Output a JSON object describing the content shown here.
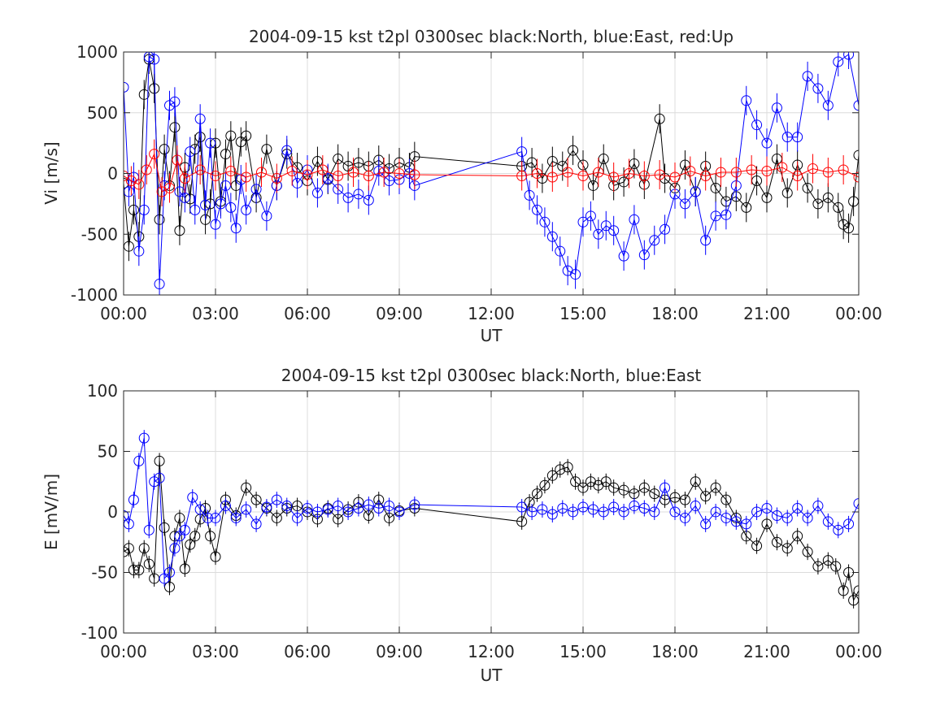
{
  "chart_data": [
    {
      "type": "scatter",
      "title": "2004-09-15 kst t2pl 0300sec black:North, blue:East, red:Up",
      "xlabel": "UT",
      "ylabel": "Vi [m/s]",
      "xlim": [
        0,
        24
      ],
      "ylim": [
        -1000,
        1000
      ],
      "x_ticks": [
        "00:00",
        "03:00",
        "06:00",
        "09:00",
        "12:00",
        "15:00",
        "18:00",
        "21:00",
        "00:00"
      ],
      "y_ticks": [
        "-1000",
        "-500",
        "0",
        "500",
        "1000"
      ],
      "y_tick_values": [
        -1000,
        -500,
        0,
        500,
        1000
      ],
      "grid": true,
      "marker": "open-circle",
      "error_bars": true,
      "series": [
        {
          "name": "North",
          "color": "#000000",
          "x": [
            0.0,
            0.17,
            0.33,
            0.5,
            0.67,
            0.83,
            1.0,
            1.17,
            1.33,
            1.5,
            1.67,
            1.83,
            2.0,
            2.17,
            2.33,
            2.5,
            2.67,
            2.83,
            3.0,
            3.17,
            3.33,
            3.5,
            3.67,
            3.83,
            4.0,
            4.33,
            4.67,
            5.0,
            5.33,
            5.67,
            6.0,
            6.33,
            6.67,
            7.0,
            7.33,
            7.67,
            8.0,
            8.33,
            8.67,
            9.0,
            9.33,
            9.5,
            13.0,
            13.33,
            13.67,
            14.0,
            14.33,
            14.67,
            15.0,
            15.33,
            15.67,
            16.0,
            16.33,
            16.67,
            17.0,
            17.5,
            17.67,
            18.0,
            18.33,
            18.67,
            19.0,
            19.33,
            19.67,
            20.0,
            20.33,
            20.67,
            21.0,
            21.33,
            21.67,
            22.0,
            22.33,
            22.67,
            23.0,
            23.33,
            23.5,
            23.67,
            23.83,
            24.0
          ],
          "values": [
            -80,
            -600,
            -300,
            -520,
            650,
            940,
            700,
            -380,
            200,
            -100,
            380,
            -470,
            50,
            -210,
            200,
            300,
            -380,
            -250,
            250,
            -230,
            160,
            310,
            -100,
            260,
            310,
            -200,
            200,
            -100,
            160,
            50,
            -60,
            100,
            -50,
            120,
            60,
            90,
            60,
            110,
            40,
            90,
            50,
            140,
            60,
            90,
            -40,
            100,
            60,
            190,
            70,
            -100,
            120,
            -100,
            -70,
            80,
            -90,
            450,
            -40,
            -120,
            70,
            -150,
            60,
            -120,
            -230,
            -190,
            -280,
            -60,
            -200,
            120,
            -160,
            70,
            -120,
            -250,
            -200,
            -280,
            -420,
            -450,
            -230,
            150
          ]
        },
        {
          "name": "East",
          "color": "#0000ff",
          "x": [
            0.0,
            0.17,
            0.33,
            0.5,
            0.67,
            0.83,
            1.0,
            1.17,
            1.33,
            1.5,
            1.67,
            1.83,
            2.0,
            2.17,
            2.33,
            2.5,
            2.67,
            2.83,
            3.0,
            3.17,
            3.33,
            3.5,
            3.67,
            3.83,
            4.0,
            4.33,
            4.67,
            5.0,
            5.33,
            5.67,
            6.0,
            6.33,
            6.67,
            7.0,
            7.33,
            7.67,
            8.0,
            8.33,
            8.67,
            9.0,
            9.33,
            9.5,
            13.0,
            13.25,
            13.5,
            13.75,
            14.0,
            14.25,
            14.5,
            14.75,
            15.0,
            15.25,
            15.5,
            15.75,
            16.0,
            16.33,
            16.67,
            17.0,
            17.33,
            17.67,
            18.0,
            18.33,
            18.67,
            19.0,
            19.33,
            19.67,
            20.0,
            20.33,
            20.67,
            21.0,
            21.33,
            21.67,
            22.0,
            22.33,
            22.67,
            23.0,
            23.33,
            23.67,
            24.0
          ],
          "values": [
            710,
            -150,
            -30,
            -640,
            -300,
            960,
            940,
            -910,
            -100,
            560,
            590,
            -150,
            -200,
            180,
            -300,
            450,
            -260,
            250,
            -420,
            -250,
            -100,
            -280,
            -450,
            -50,
            -300,
            -130,
            -350,
            -100,
            190,
            -80,
            30,
            -160,
            -40,
            -130,
            -200,
            -170,
            -220,
            20,
            -60,
            -50,
            0,
            -100,
            180,
            -180,
            -300,
            -400,
            -520,
            -640,
            -800,
            -830,
            -400,
            -350,
            -500,
            -430,
            -470,
            -680,
            -380,
            -670,
            -550,
            -460,
            -170,
            -250,
            -150,
            -550,
            -350,
            -340,
            -100,
            600,
            400,
            250,
            540,
            300,
            300,
            800,
            700,
            560,
            920,
            980,
            560
          ]
        },
        {
          "name": "Up",
          "color": "#ff0000",
          "x": [
            0.0,
            0.25,
            0.5,
            0.75,
            1.0,
            1.25,
            1.5,
            1.75,
            2.0,
            2.5,
            3.0,
            3.5,
            4.0,
            4.5,
            5.0,
            5.5,
            6.0,
            6.5,
            7.0,
            7.5,
            8.0,
            8.5,
            9.0,
            9.5,
            13.0,
            13.5,
            14.0,
            14.5,
            15.0,
            15.5,
            16.0,
            16.5,
            17.0,
            17.5,
            18.0,
            18.5,
            19.0,
            19.5,
            20.0,
            20.5,
            21.0,
            21.5,
            22.0,
            22.5,
            23.0,
            23.5,
            24.0
          ],
          "values": [
            -20,
            -60,
            -90,
            30,
            160,
            -150,
            -120,
            110,
            -40,
            30,
            -20,
            20,
            -30,
            10,
            -40,
            20,
            -10,
            30,
            -20,
            10,
            -20,
            10,
            0,
            -10,
            -20,
            0,
            -30,
            10,
            -20,
            10,
            -30,
            0,
            -20,
            -10,
            -30,
            20,
            -20,
            10,
            10,
            30,
            20,
            50,
            -20,
            40,
            10,
            30,
            -30
          ]
        }
      ]
    },
    {
      "type": "scatter",
      "title": "2004-09-15 kst t2pl 0300sec black:North, blue:East",
      "xlabel": "UT",
      "ylabel": "E [mV/m]",
      "xlim": [
        0,
        24
      ],
      "ylim": [
        -100,
        100
      ],
      "x_ticks": [
        "00:00",
        "03:00",
        "06:00",
        "09:00",
        "12:00",
        "15:00",
        "18:00",
        "21:00",
        "00:00"
      ],
      "y_ticks": [
        "-100",
        "-50",
        "0",
        "50",
        "100"
      ],
      "y_tick_values": [
        -100,
        -50,
        0,
        50,
        100
      ],
      "grid": true,
      "marker": "open-circle",
      "error_bars": true,
      "series": [
        {
          "name": "North",
          "color": "#000000",
          "x": [
            0.0,
            0.17,
            0.33,
            0.5,
            0.67,
            0.83,
            1.0,
            1.17,
            1.33,
            1.5,
            1.67,
            1.83,
            2.0,
            2.17,
            2.33,
            2.5,
            2.67,
            2.83,
            3.0,
            3.33,
            3.67,
            4.0,
            4.33,
            4.67,
            5.0,
            5.33,
            5.67,
            6.0,
            6.33,
            6.67,
            7.0,
            7.33,
            7.67,
            8.0,
            8.33,
            8.67,
            9.0,
            9.5,
            13.0,
            13.25,
            13.5,
            13.75,
            14.0,
            14.25,
            14.5,
            14.75,
            15.0,
            15.25,
            15.5,
            15.75,
            16.0,
            16.33,
            16.67,
            17.0,
            17.33,
            17.67,
            18.0,
            18.33,
            18.67,
            19.0,
            19.33,
            19.67,
            20.0,
            20.33,
            20.67,
            21.0,
            21.33,
            21.67,
            22.0,
            22.33,
            22.67,
            23.0,
            23.25,
            23.5,
            23.67,
            23.83,
            24.0
          ],
          "values": [
            -33,
            -30,
            -48,
            -48,
            -30,
            -43,
            -55,
            42,
            -13,
            -62,
            -20,
            -5,
            -47,
            -27,
            -20,
            -6,
            3,
            -20,
            -37,
            10,
            -3,
            20,
            10,
            3,
            -5,
            3,
            5,
            0,
            -6,
            3,
            -6,
            2,
            8,
            -3,
            10,
            -5,
            1,
            3,
            -8,
            8,
            15,
            22,
            30,
            35,
            37,
            25,
            20,
            25,
            22,
            25,
            20,
            18,
            15,
            20,
            15,
            10,
            12,
            10,
            25,
            13,
            20,
            10,
            -5,
            -20,
            -28,
            -10,
            -25,
            -30,
            -20,
            -33,
            -45,
            -40,
            -45,
            -65,
            -50,
            -73,
            -65
          ]
        },
        {
          "name": "East",
          "color": "#0000ff",
          "x": [
            0.0,
            0.17,
            0.33,
            0.5,
            0.67,
            0.83,
            1.0,
            1.17,
            1.33,
            1.5,
            1.67,
            1.83,
            2.0,
            2.25,
            2.5,
            2.75,
            3.0,
            3.33,
            3.67,
            4.0,
            4.33,
            4.67,
            5.0,
            5.33,
            5.67,
            6.0,
            6.33,
            6.67,
            7.0,
            7.33,
            7.67,
            8.0,
            8.33,
            8.67,
            9.0,
            9.5,
            13.0,
            13.33,
            13.67,
            14.0,
            14.33,
            14.67,
            15.0,
            15.33,
            15.67,
            16.0,
            16.33,
            16.67,
            17.0,
            17.33,
            17.67,
            18.0,
            18.33,
            18.67,
            19.0,
            19.33,
            19.67,
            20.0,
            20.33,
            20.67,
            21.0,
            21.33,
            21.67,
            22.0,
            22.33,
            22.67,
            23.0,
            23.33,
            23.67,
            24.0
          ],
          "values": [
            -3,
            -10,
            10,
            42,
            61,
            -15,
            25,
            28,
            -55,
            -50,
            -30,
            -20,
            -15,
            12,
            2,
            -5,
            -5,
            5,
            -5,
            2,
            -10,
            4,
            10,
            5,
            -5,
            3,
            0,
            2,
            5,
            0,
            3,
            6,
            3,
            5,
            0,
            6,
            4,
            0,
            2,
            -2,
            3,
            0,
            4,
            2,
            0,
            4,
            0,
            5,
            3,
            0,
            20,
            0,
            -5,
            5,
            -10,
            0,
            -5,
            -8,
            -10,
            0,
            3,
            -3,
            -5,
            3,
            -5,
            5,
            -8,
            -15,
            -10,
            7
          ]
        }
      ]
    }
  ]
}
